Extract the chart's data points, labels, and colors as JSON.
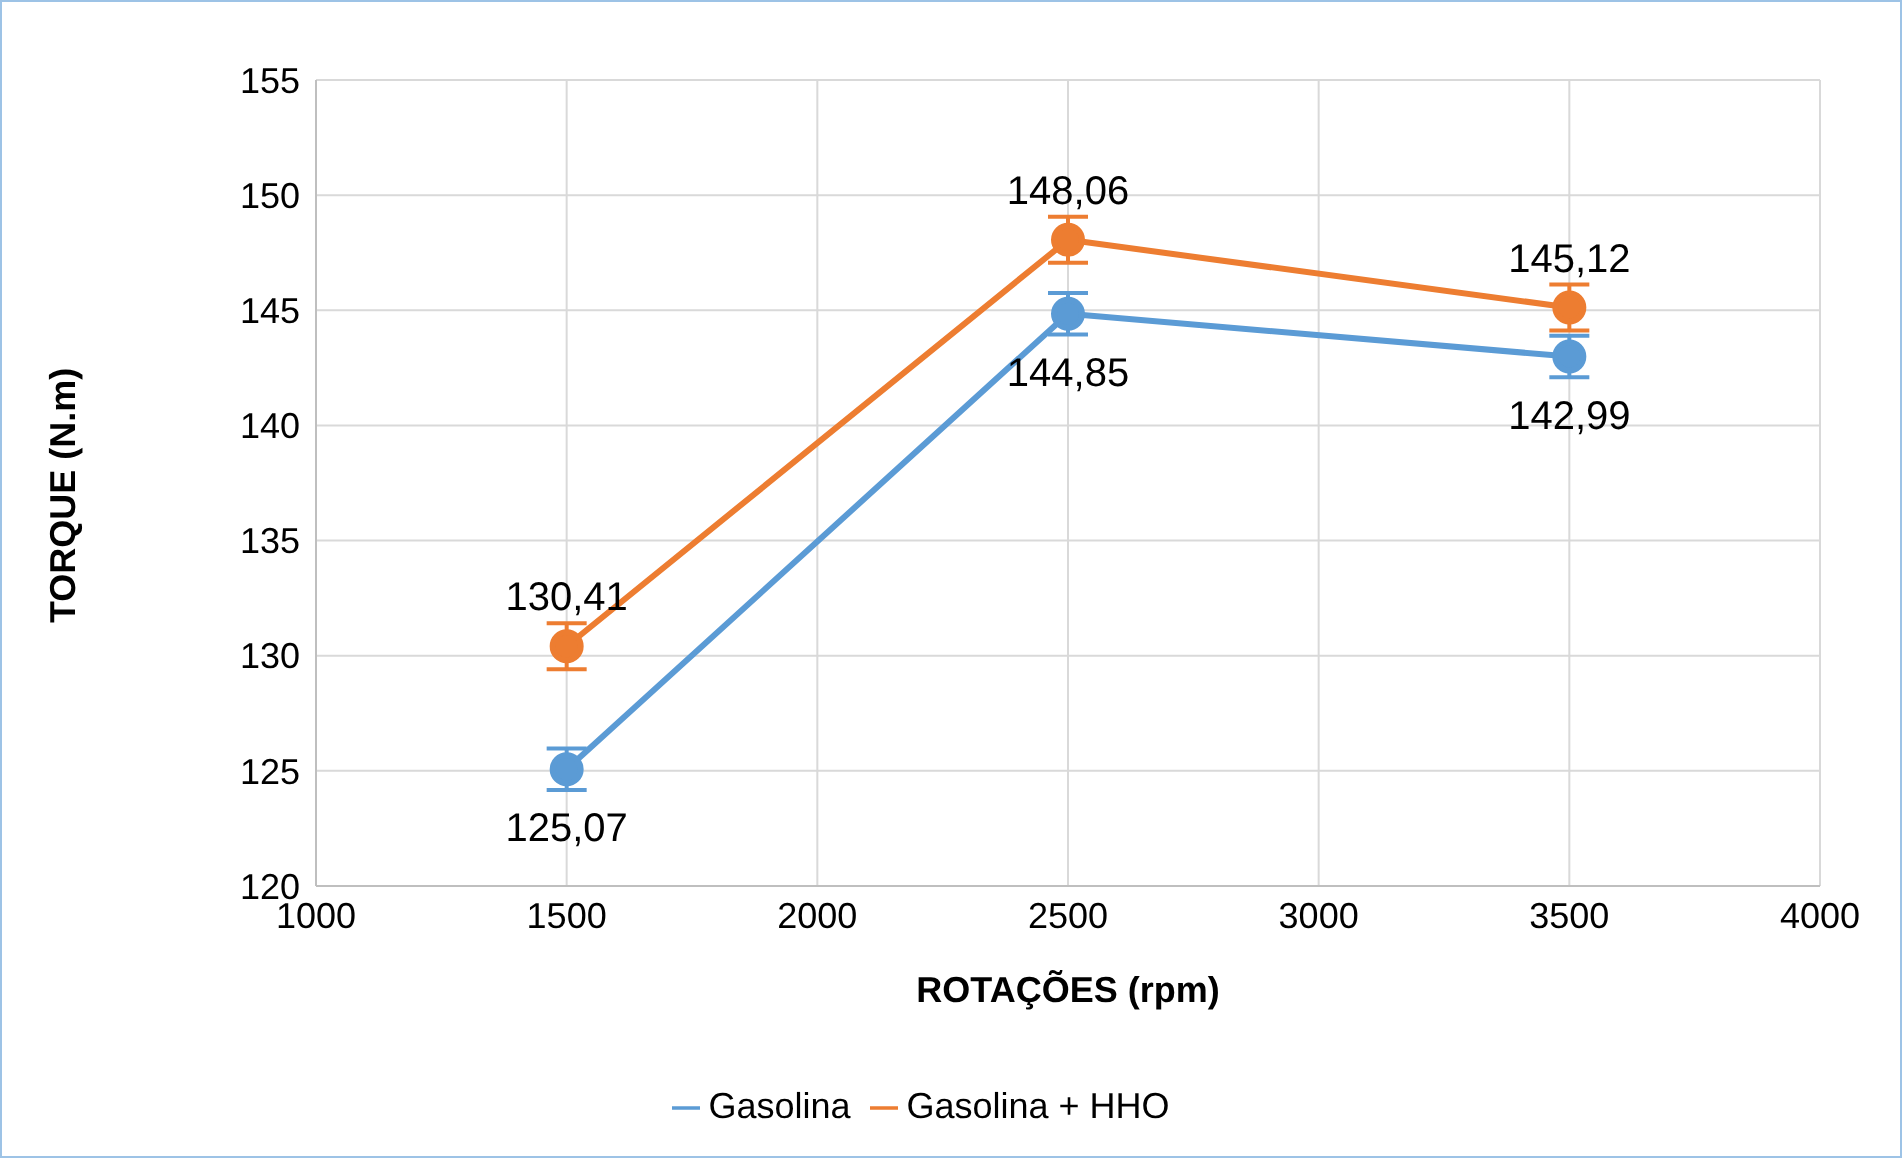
{
  "chart_data": {
    "type": "line",
    "xlabel": "ROTAÇÕES (rpm)",
    "ylabel": "TORQUE (N.m)",
    "x": [
      1500,
      2500,
      3500
    ],
    "series": [
      {
        "name": "Gasolina",
        "color": "#5b9bd5",
        "values": [
          125.07,
          144.85,
          142.99
        ],
        "errors": [
          0.9,
          0.9,
          0.9
        ],
        "value_labels": [
          "125,07",
          "144,85",
          "142,99"
        ]
      },
      {
        "name": "Gasolina + HHO",
        "color": "#ed7d31",
        "values": [
          130.41,
          148.06,
          145.12
        ],
        "errors": [
          1,
          1,
          1
        ],
        "value_labels": [
          "130,41",
          "148,06",
          "145,12"
        ]
      }
    ],
    "xlim": [
      1000,
      4000
    ],
    "xticks": [
      1000,
      1500,
      2000,
      2500,
      3000,
      3500,
      4000
    ],
    "ylim": [
      120,
      155
    ],
    "yticks": [
      120,
      125,
      130,
      135,
      140,
      145,
      150,
      155
    ],
    "grid": true,
    "legend": "bottom",
    "marker": "circle",
    "line_style": "solid"
  }
}
